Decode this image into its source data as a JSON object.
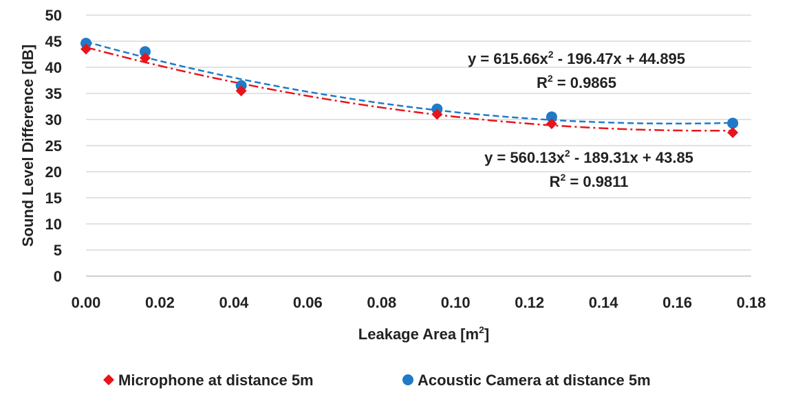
{
  "chart_data": {
    "type": "scatter",
    "xlabel_main": "Leakage Area [m",
    "xlabel_sup": "2",
    "xlabel_end": "]",
    "ylabel": "Sound Level Difference [dB]",
    "xlim": [
      0,
      0.18
    ],
    "ylim": [
      0,
      50
    ],
    "x_ticks": [
      "0.00",
      "0.02",
      "0.04",
      "0.06",
      "0.08",
      "0.10",
      "0.12",
      "0.14",
      "0.16",
      "0.18"
    ],
    "y_ticks": [
      "0",
      "5",
      "10",
      "15",
      "20",
      "25",
      "30",
      "35",
      "40",
      "45",
      "50"
    ],
    "grid": "horizontal",
    "legend_position": "bottom",
    "series": [
      {
        "name": "Microphone at distance 5m",
        "color": "#e8141b",
        "marker": "diamond",
        "trendline": "dash-dot",
        "x": [
          0.0,
          0.016,
          0.042,
          0.095,
          0.126,
          0.175
        ],
        "y": [
          43.5,
          41.8,
          35.5,
          31.0,
          29.2,
          27.5
        ],
        "fit": [
          560.13,
          -189.31,
          43.85
        ],
        "eq_main": "y = 560.13x",
        "eq_sup": "2",
        "eq_rest": " - 189.31x + 43.85",
        "r2_label": "R",
        "r2_sup": "2",
        "r2_value": " = 0.9811"
      },
      {
        "name": "Acoustic Camera at distance 5m",
        "color": "#1f7ac8",
        "marker": "circle",
        "trendline": "dashed",
        "x": [
          0.0,
          0.016,
          0.042,
          0.095,
          0.126,
          0.175
        ],
        "y": [
          44.6,
          43.0,
          36.5,
          32.0,
          30.5,
          29.3
        ],
        "fit": [
          615.66,
          -196.47,
          44.895
        ],
        "eq_main": "y = 615.66x",
        "eq_sup": "2",
        "eq_rest": " - 196.47x + 44.895",
        "r2_label": "R",
        "r2_sup": "2",
        "r2_value": " = 0.9865"
      }
    ]
  }
}
